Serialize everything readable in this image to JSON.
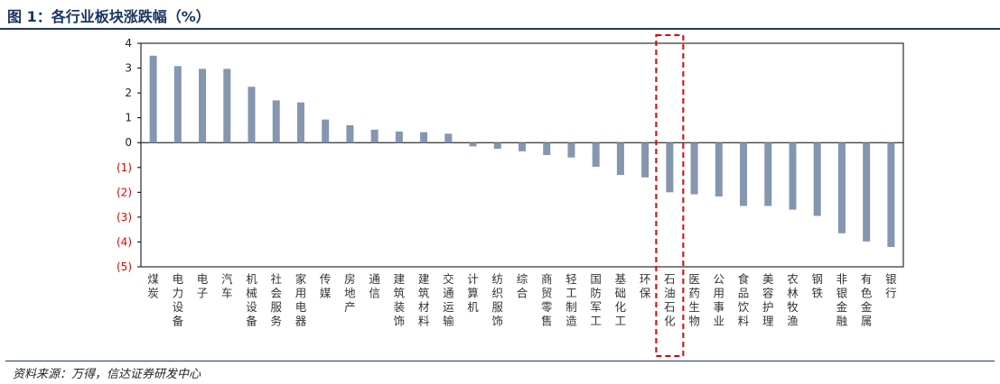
{
  "header": {
    "title": "图 1：各行业板块涨跌幅（%）"
  },
  "footer": {
    "source": "资料来源：万得，信达证券研发中心"
  },
  "colors": {
    "bar": "#8496b0",
    "negative_tick": "#e00000",
    "positive_tick": "#222222",
    "highlight_box": "#e00000",
    "rule": "#1f3864"
  },
  "chart_data": {
    "type": "bar",
    "title": "",
    "xlabel": "",
    "ylabel": "",
    "ylim": [
      -5,
      4
    ],
    "grid": false,
    "legend": "none",
    "yticks": [
      {
        "value": 4,
        "label": "4"
      },
      {
        "value": 3,
        "label": "3"
      },
      {
        "value": 2,
        "label": "2"
      },
      {
        "value": 1,
        "label": "1"
      },
      {
        "value": 0,
        "label": "0"
      },
      {
        "value": -1,
        "label": "(1)"
      },
      {
        "value": -2,
        "label": "(2)"
      },
      {
        "value": -3,
        "label": "(3)"
      },
      {
        "value": -4,
        "label": "(4)"
      },
      {
        "value": -5,
        "label": "(5)"
      }
    ],
    "categories": [
      "煤炭",
      "电力设备",
      "电子",
      "汽车",
      "机械设备",
      "社会服务",
      "家用电器",
      "传媒",
      "房地产",
      "通信",
      "建筑装饰",
      "建筑材料",
      "交通运输",
      "计算机",
      "纺织服饰",
      "综合",
      "商贸零售",
      "轻工制造",
      "国防军工",
      "基础化工",
      "环保",
      "石油石化",
      "医药生物",
      "公用事业",
      "食品饮料",
      "美容护理",
      "农林牧渔",
      "钢铁",
      "非银金融",
      "有色金属",
      "银行"
    ],
    "values": [
      3.5,
      3.08,
      2.97,
      2.97,
      2.25,
      1.7,
      1.62,
      0.93,
      0.7,
      0.52,
      0.45,
      0.42,
      0.36,
      -0.15,
      -0.25,
      -0.35,
      -0.5,
      -0.6,
      -0.97,
      -1.3,
      -1.4,
      -2.0,
      -2.08,
      -2.17,
      -2.55,
      -2.55,
      -2.7,
      -2.95,
      -3.65,
      -3.98,
      -4.2
    ],
    "highlight_category": "石油石化"
  }
}
